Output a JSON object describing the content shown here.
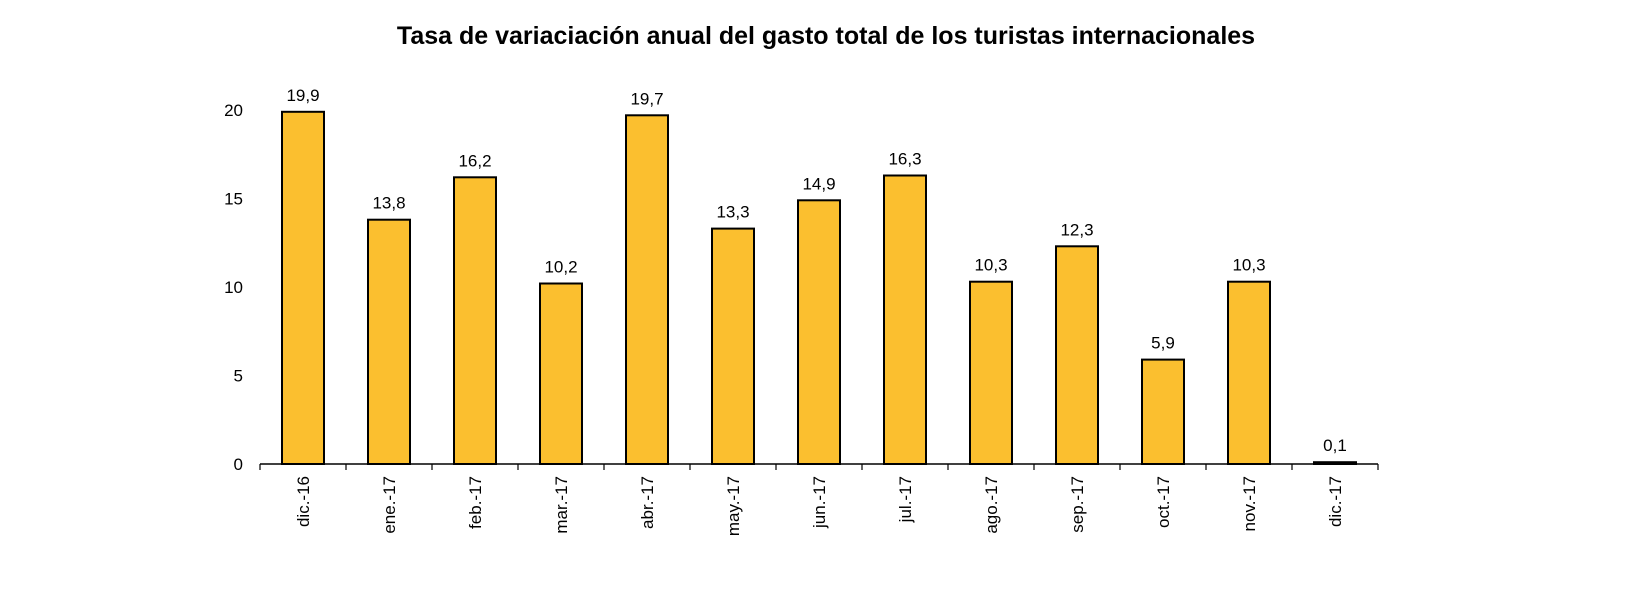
{
  "chart_data": {
    "type": "bar",
    "title": "Tasa de variaciación anual del gasto total de los turistas internacionales",
    "xlabel": "",
    "ylabel": "",
    "categories": [
      "dic.-16",
      "ene.-17",
      "feb.-17",
      "mar.-17",
      "abr.-17",
      "may.-17",
      "jun.-17",
      "jul.-17",
      "ago.-17",
      "sep.-17",
      "oct.-17",
      "nov.-17",
      "dic.-17"
    ],
    "values": [
      19.9,
      13.8,
      16.2,
      10.2,
      19.7,
      13.3,
      14.9,
      16.3,
      10.3,
      12.3,
      5.9,
      10.3,
      0.1
    ],
    "data_labels": [
      "19,9",
      "13,8",
      "16,2",
      "10,2",
      "19,7",
      "13,3",
      "14,9",
      "16,3",
      "10,3",
      "12,3",
      "5,9",
      "10,3",
      "0,1"
    ],
    "ylim": [
      0,
      20
    ],
    "yticks": [
      0,
      5,
      10,
      15,
      20
    ],
    "grid": false,
    "legend": "none",
    "bar_color": "#FBBF2F",
    "bar_edge_color": "#000000"
  }
}
